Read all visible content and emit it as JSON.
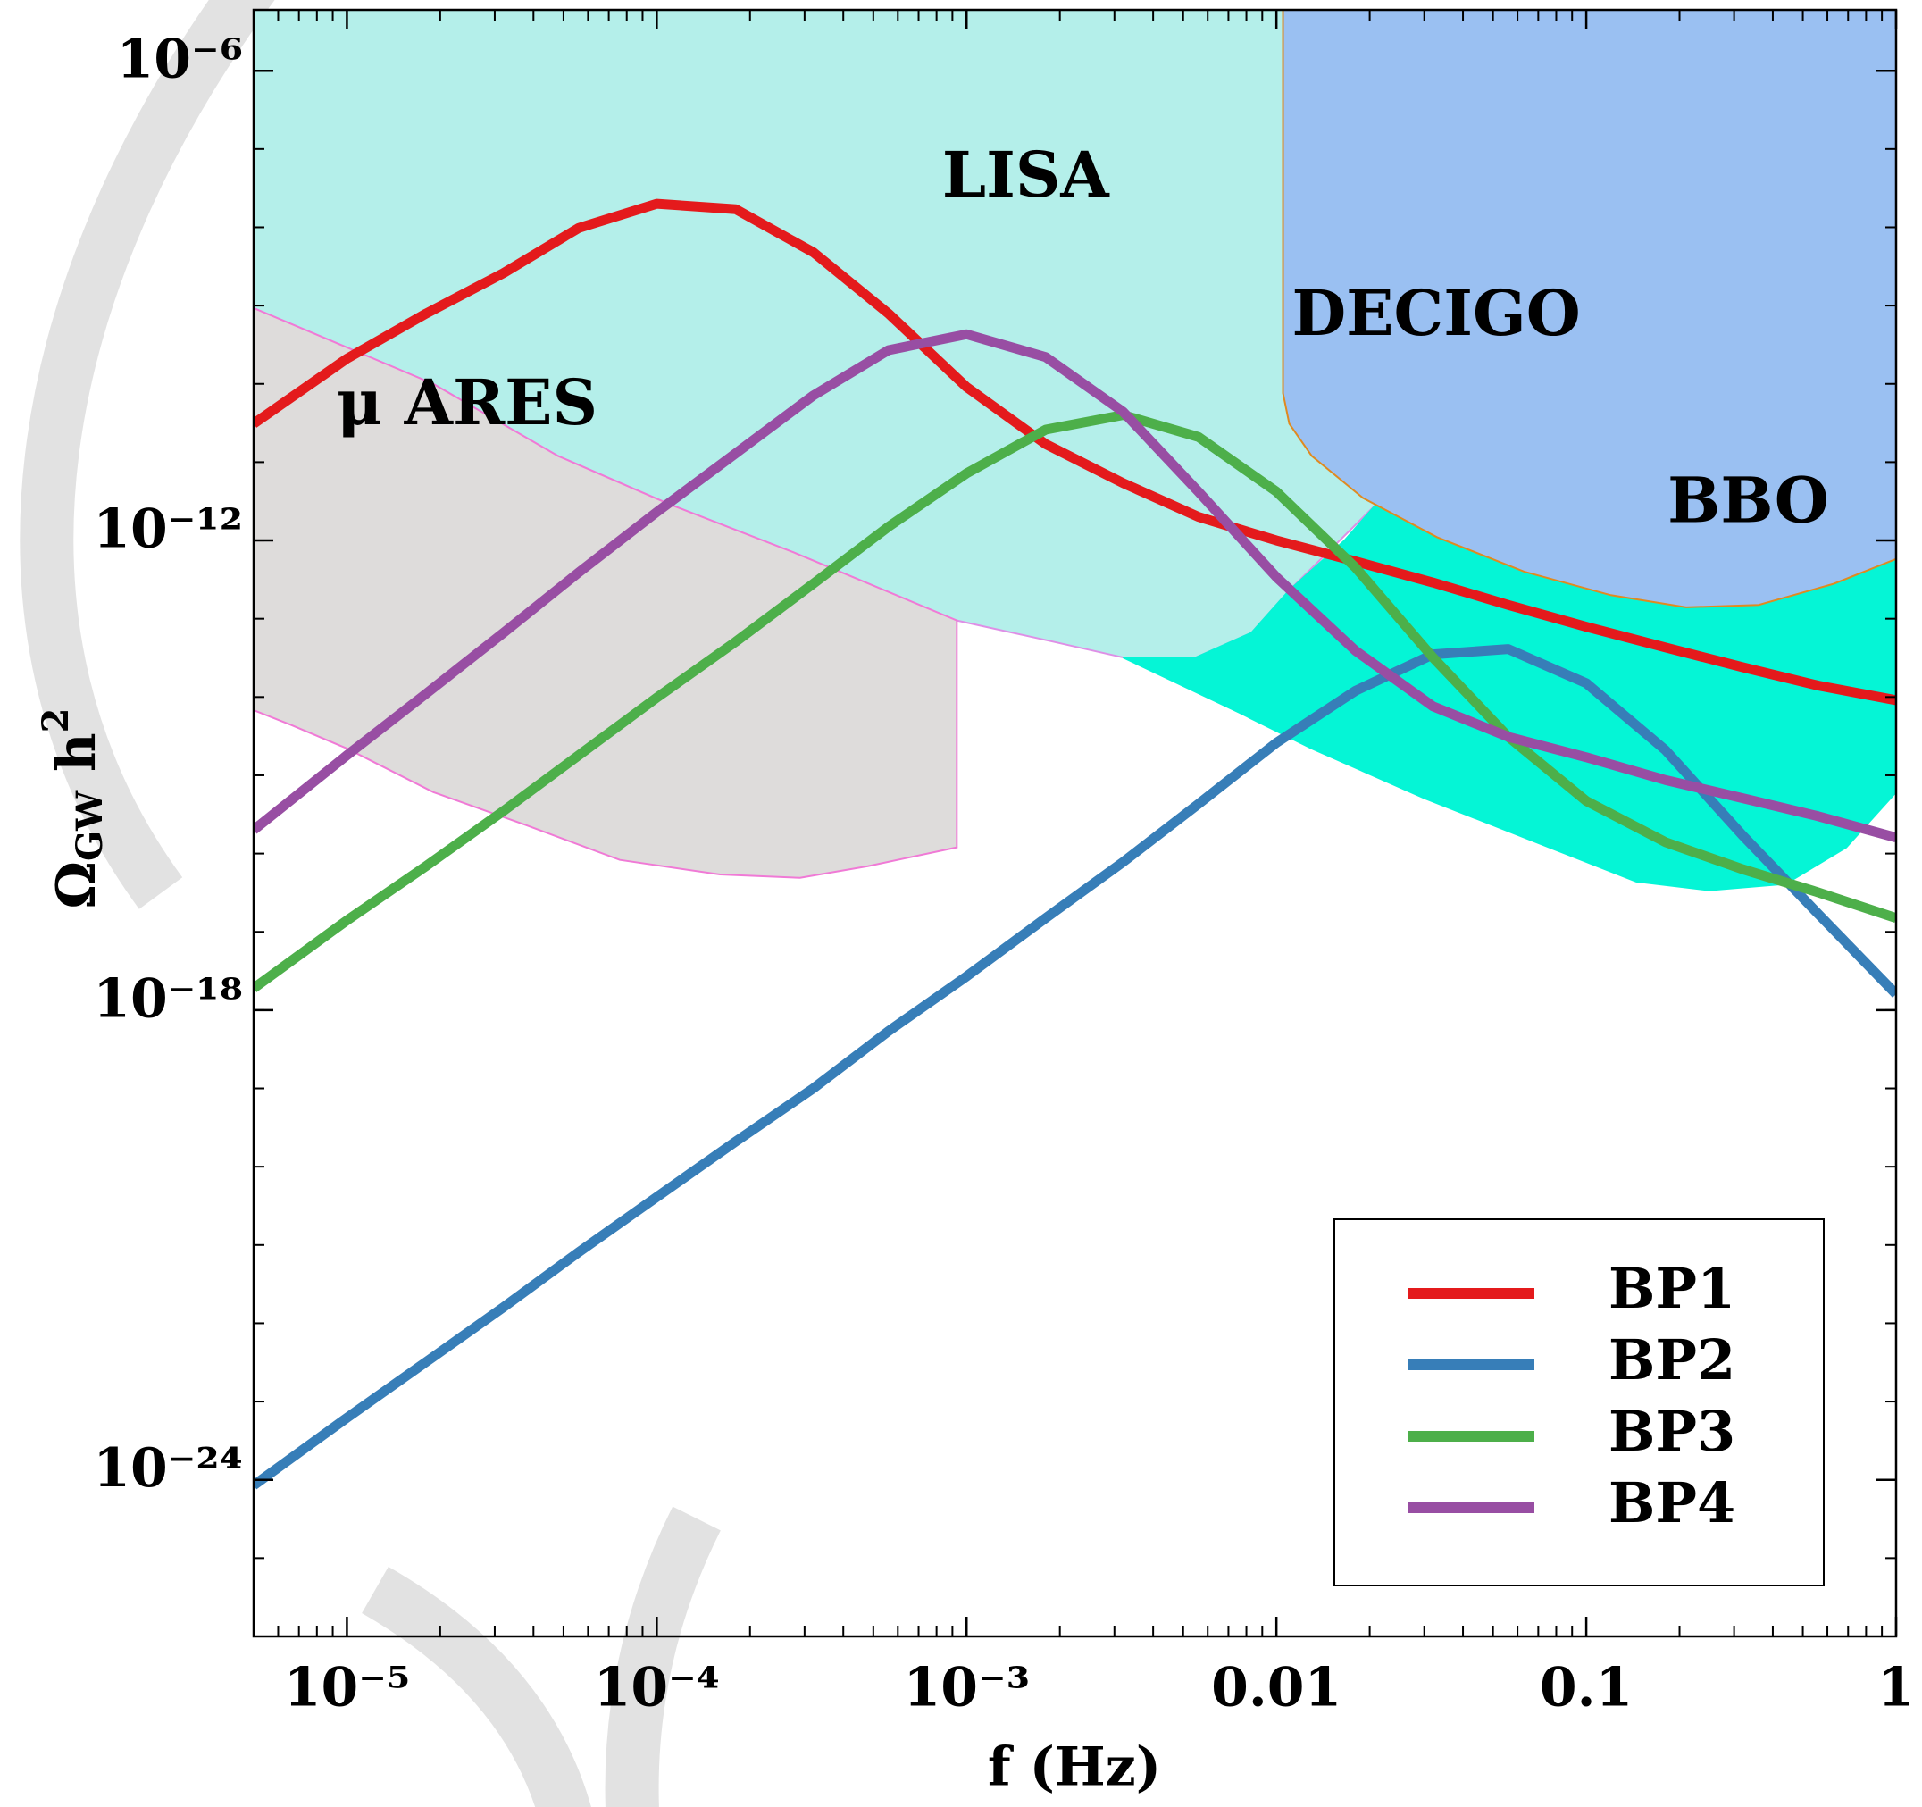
{
  "chart_data": {
    "type": "line",
    "xlabel": "f (Hz)",
    "ylabel": {
      "symbol": "Ω",
      "subscript": "GW",
      "rest": " h",
      "superscript": "2"
    },
    "xscale": "log",
    "yscale": "log",
    "xlim": [
      5e-06,
      1
    ],
    "ylim": [
      1e-26,
      6e-06
    ],
    "xticks": [
      {
        "value": 1e-05,
        "label": "10⁻⁵"
      },
      {
        "value": 0.0001,
        "label": "10⁻⁴"
      },
      {
        "value": 0.001,
        "label": "10⁻³"
      },
      0.01,
      0.1,
      1
    ],
    "yticks": [
      {
        "value": 1e-24,
        "label": "10⁻²⁴"
      },
      {
        "value": 1e-18,
        "label": "10⁻¹⁸"
      },
      {
        "value": 1e-12,
        "label": "10⁻¹²"
      },
      {
        "value": 1e-06,
        "label": "10⁻⁶"
      }
    ],
    "minor_ticks": true,
    "legend": "lower right",
    "regions": [
      {
        "name": "LISA",
        "color": "#b4efea",
        "edgecolor": "#de8fe6",
        "x": [
          5e-06,
          0.021,
          0.021,
          0.016,
          0.011,
          0.0083,
          0.0055,
          0.0032,
          0.0019,
          0.00093,
          0.00028,
          0.00011,
          4.8e-05,
          1.9e-05,
          5e-06
        ],
        "y": [
          6e-06,
          6e-06,
          2.9e-12,
          1e-12,
          2.3e-13,
          6.6e-14,
          3.2e-14,
          3.2e-14,
          5.1e-14,
          9.5e-14,
          6.9e-13,
          2.9e-12,
          1.2e-11,
          1e-10,
          9.3e-10
        ]
      },
      {
        "name": "μ ARES",
        "color": "#dedcdb",
        "edgecolor": "#f07ad6",
        "x": [
          5e-06,
          1.9e-05,
          4.8e-05,
          0.00011,
          0.00028,
          0.00093,
          0.00093,
          0.00048,
          0.00029,
          0.00016,
          7.6e-05,
          3.8e-05,
          1.9e-05,
          1e-05,
          6.6e-06,
          5e-06
        ],
        "y": [
          9.3e-10,
          1e-10,
          1.2e-11,
          2.9e-12,
          6.9e-13,
          9.5e-14,
          1.2e-16,
          6.9e-17,
          4.9e-17,
          5.4e-17,
          8.3e-17,
          2.3e-16,
          6.1e-16,
          2.2e-15,
          4.4e-15,
          6.8e-15
        ]
      },
      {
        "name": "BBO",
        "color": "#05f5d6",
        "edgecolor": "#05f5d6",
        "x": [
          0.0032,
          0.0055,
          0.0083,
          0.011,
          0.0166,
          0.021,
          0.021,
          1,
          1,
          0.69,
          0.44,
          0.25,
          0.145,
          0.076,
          0.03,
          0.013,
          0.0076
        ],
        "y": [
          3.2e-14,
          3.2e-14,
          6.6e-14,
          2.3e-13,
          1e-12,
          2.9e-12,
          1.5e-10,
          1.5e-10,
          6.1e-16,
          1.2e-16,
          4.1e-17,
          3.4e-17,
          4.4e-17,
          1.2e-16,
          5.1e-16,
          2.2e-15,
          6.3e-15
        ]
      },
      {
        "name": "DECIGO",
        "color": "#9ac0f2",
        "edgecolor": "#e08a20",
        "x": [
          0.0105,
          1,
          1,
          0.63,
          0.36,
          0.21,
          0.12,
          0.063,
          0.033,
          0.019,
          0.013,
          0.011,
          0.0105
        ],
        "y": [
          6e-06,
          6e-06,
          5.8e-13,
          2.8e-13,
          1.5e-13,
          1.4e-13,
          2e-13,
          4e-13,
          1.1e-12,
          3.5e-12,
          1.2e-11,
          3.1e-11,
          7.6e-11
        ]
      }
    ],
    "x": [
      5e-06,
      1e-05,
      1.8e-05,
      3.2e-05,
      5.6e-05,
      0.0001,
      0.00018,
      0.00032,
      0.00056,
      0.001,
      0.0018,
      0.0032,
      0.0056,
      0.01,
      0.018,
      0.032,
      0.056,
      0.1,
      0.18,
      0.32,
      0.56,
      1
    ],
    "series": [
      {
        "name": "BP1",
        "color": "#e41a1c",
        "values": [
          3.1e-11,
          2.1e-10,
          7.9e-10,
          2.6e-09,
          9.8e-09,
          2e-08,
          1.7e-08,
          4.8e-09,
          7.9e-10,
          9.1e-11,
          1.7e-11,
          5.4e-12,
          2e-12,
          1e-12,
          5.4e-13,
          2.9e-13,
          1.5e-13,
          7.9e-14,
          4.3e-14,
          2.4e-14,
          1.4e-14,
          9.1e-15
        ]
      },
      {
        "name": "BP2",
        "color": "#377eb8",
        "values": [
          8.5e-25,
          6.2e-24,
          3.2e-23,
          1.6e-22,
          8.1e-22,
          4.1e-21,
          2.1e-20,
          1e-19,
          5.4e-19,
          2.7e-18,
          1.5e-17,
          7.8e-17,
          4.3e-16,
          2.6e-15,
          1.2e-14,
          3.5e-14,
          4.1e-14,
          1.5e-14,
          2.1e-15,
          1.7e-16,
          1.7e-17,
          1.6e-18
        ]
      },
      {
        "name": "BP3",
        "color": "#4daf4a",
        "values": [
          1.9e-18,
          1.4e-17,
          6.9e-17,
          3.5e-16,
          1.8e-15,
          9.8e-15,
          5.1e-14,
          2.8e-13,
          1.5e-12,
          7.2e-12,
          2.6e-11,
          4e-11,
          2.1e-11,
          4.2e-12,
          4.5e-13,
          3.2e-14,
          3.1e-15,
          4.7e-16,
          1.4e-16,
          6.3e-17,
          3.2e-17,
          1.5e-17
        ]
      },
      {
        "name": "BP4",
        "color": "#984ea3",
        "values": [
          2e-16,
          1.8e-15,
          1.1e-14,
          6.6e-14,
          3.9e-13,
          2.3e-12,
          1.3e-11,
          7.1e-11,
          2.7e-10,
          4.3e-10,
          2.2e-10,
          4.4e-11,
          4.2e-12,
          3.4e-13,
          3.9e-14,
          7.6e-15,
          3.1e-15,
          1.7e-15,
          8.7e-16,
          5.1e-16,
          3e-16,
          1.6e-16
        ]
      }
    ]
  }
}
